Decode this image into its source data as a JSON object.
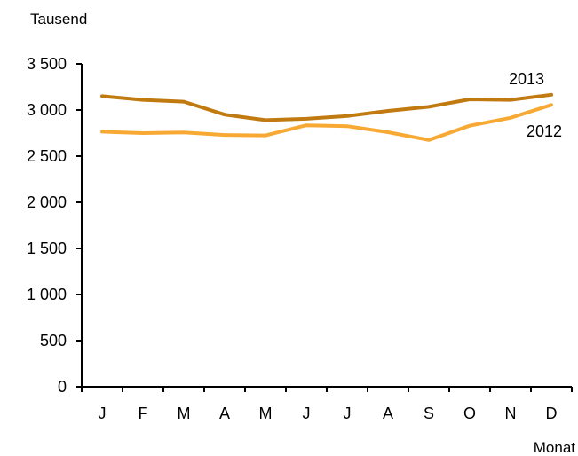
{
  "chart_data": {
    "type": "line",
    "ylabel": "Tausend",
    "xlabel": "Monat",
    "categories": [
      "J",
      "F",
      "M",
      "A",
      "M",
      "J",
      "J",
      "A",
      "S",
      "O",
      "N",
      "D"
    ],
    "y_ticks": [
      "0",
      "500",
      "1 000",
      "1 500",
      "2 000",
      "2 500",
      "3 000",
      "3 500"
    ],
    "ylim": [
      0,
      3500
    ],
    "grid": false,
    "series": [
      {
        "name": "2013",
        "color": "#C07A10",
        "values": [
          3150,
          3110,
          3090,
          2950,
          2890,
          2905,
          2935,
          2990,
          3035,
          3115,
          3110,
          3165
        ]
      },
      {
        "name": "2012",
        "color": "#F7A934",
        "values": [
          2765,
          2750,
          2758,
          2730,
          2725,
          2835,
          2825,
          2760,
          2675,
          2830,
          2915,
          3055
        ]
      }
    ]
  }
}
